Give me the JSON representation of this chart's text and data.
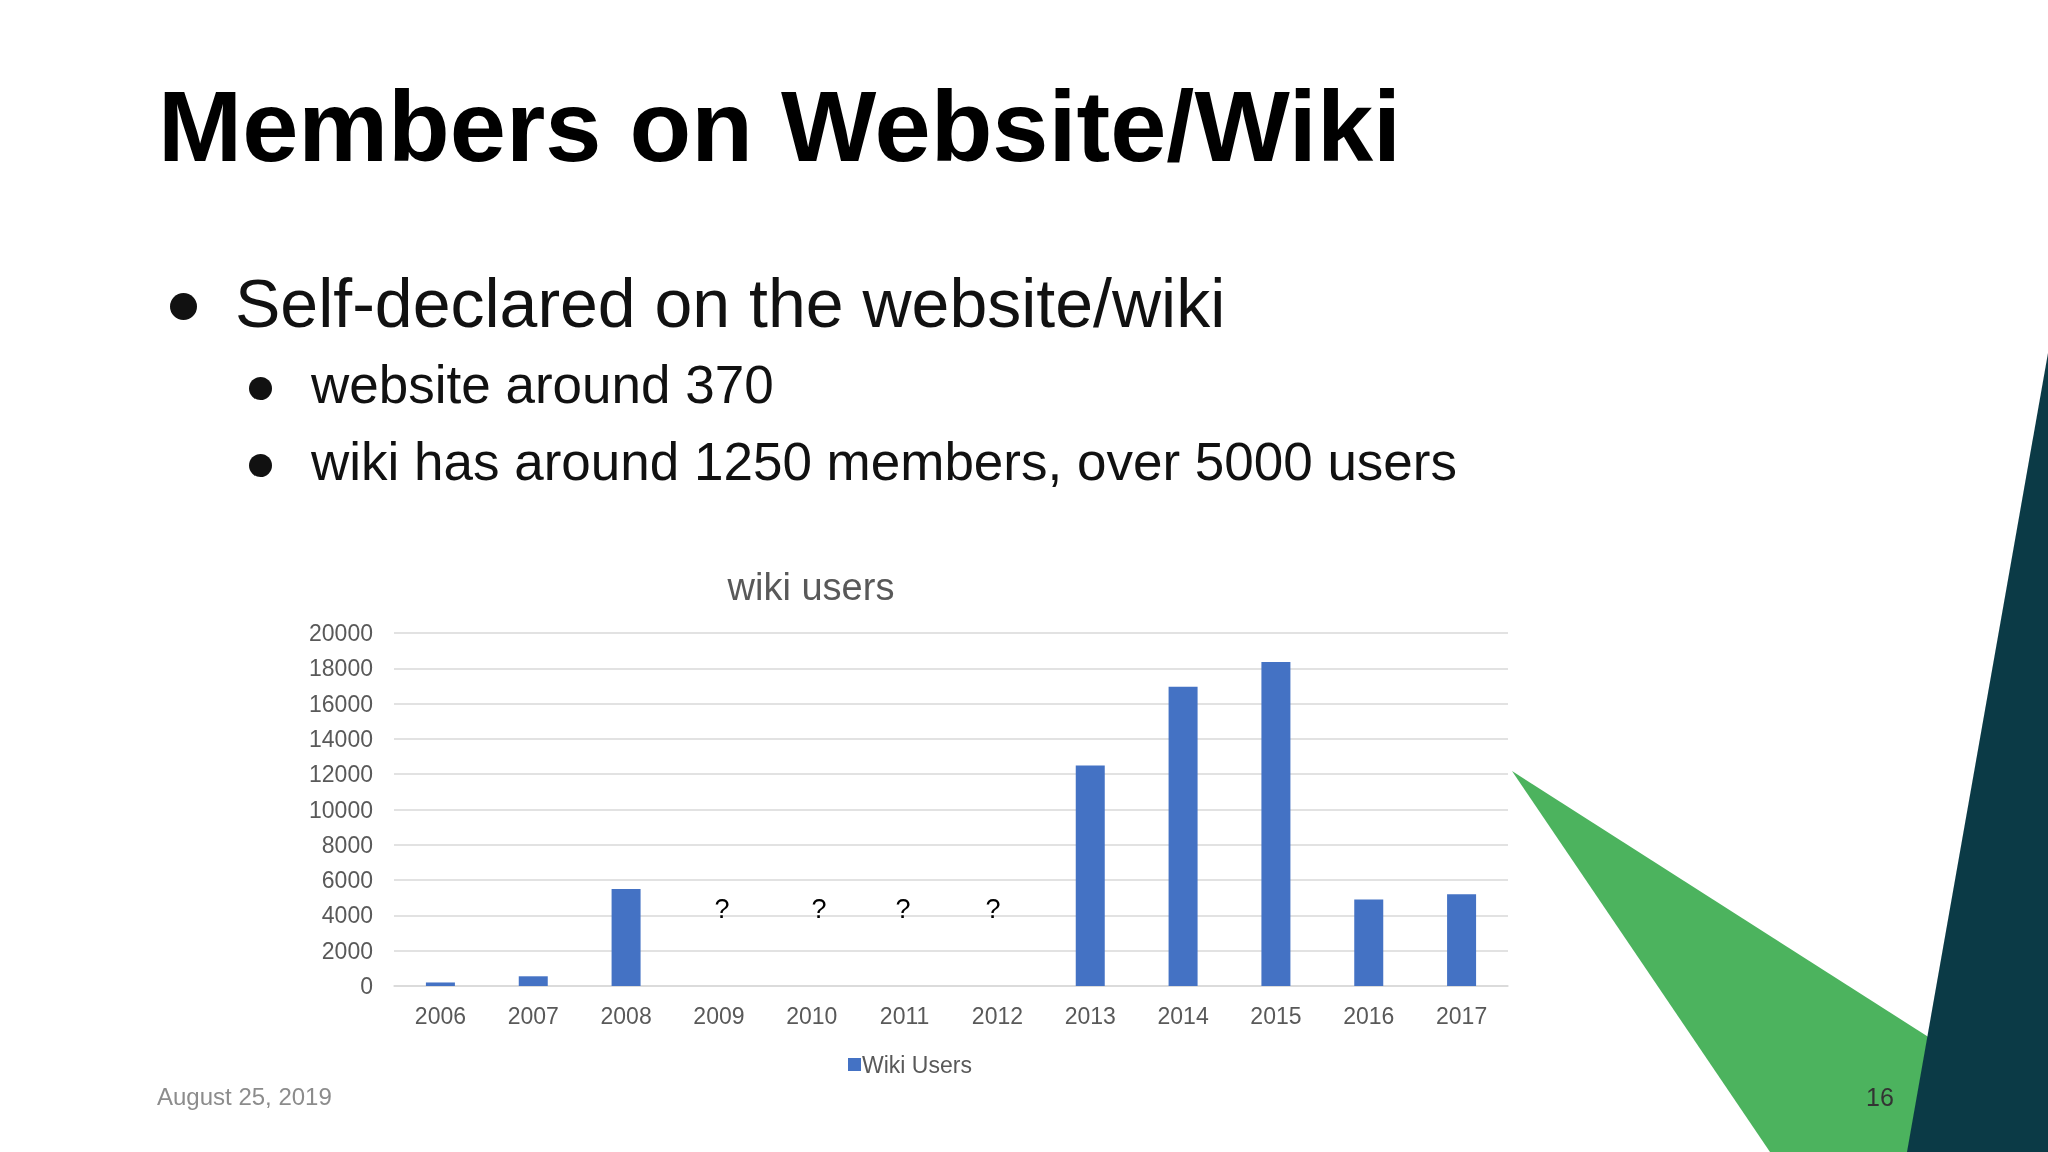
{
  "chart_data": {
    "type": "bar",
    "title": "Members on Website/Wiki",
    "subtitle": "wiki users",
    "annotations": [
      "Self-declared on the website/wiki",
      "website around 370",
      "wiki has around 1250 members, over 5000 users",
      "?",
      "?",
      "?",
      "?",
      "August 25, 2019",
      "16"
    ],
    "categories": [
      "2006",
      "2007",
      "2008",
      "2009",
      "2010",
      "2011",
      "2012",
      "2013",
      "2014",
      "2015",
      "2016",
      "2017"
    ],
    "series": [
      {
        "name": "Wiki Users",
        "color": "#4472c4",
        "values": [
          200,
          550,
          5500,
          null,
          null,
          null,
          null,
          12500,
          16950,
          18350,
          4900,
          5200
        ]
      }
    ],
    "ylim": [
      0,
      20000
    ],
    "yticks": [
      0,
      2000,
      4000,
      6000,
      8000,
      10000,
      12000,
      14000,
      16000,
      18000,
      20000
    ],
    "grid": "y",
    "legend": "bottom"
  }
}
